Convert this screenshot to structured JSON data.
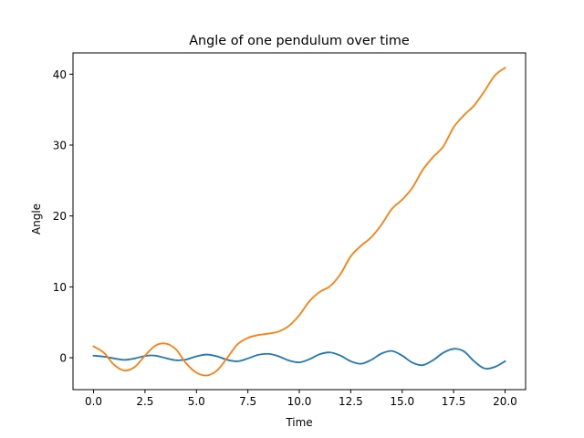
{
  "chart_data": {
    "type": "line",
    "title": "Angle of one pendulum over time",
    "xlabel": "Time",
    "ylabel": "Angle",
    "xlim": [
      -1.0,
      21.0
    ],
    "ylim": [
      -4.5,
      43.0
    ],
    "xticks": [
      0.0,
      2.5,
      5.0,
      7.5,
      10.0,
      12.5,
      15.0,
      17.5,
      20.0
    ],
    "xtick_labels": [
      "0.0",
      "2.5",
      "5.0",
      "7.5",
      "10.0",
      "12.5",
      "15.0",
      "17.5",
      "20.0"
    ],
    "yticks": [
      0,
      10,
      20,
      30,
      40
    ],
    "ytick_labels": [
      "0",
      "10",
      "20",
      "30",
      "40"
    ],
    "grid": false,
    "series": [
      {
        "color": "#1f77b4",
        "x": [
          0.0,
          0.5,
          1.0,
          1.5,
          2.0,
          2.5,
          3.0,
          3.5,
          4.0,
          4.5,
          5.0,
          5.5,
          6.0,
          6.5,
          7.0,
          7.5,
          8.0,
          8.5,
          9.0,
          9.5,
          10.0,
          10.5,
          11.0,
          11.5,
          12.0,
          12.5,
          13.0,
          13.5,
          14.0,
          14.5,
          15.0,
          15.5,
          16.0,
          16.5,
          17.0,
          17.5,
          18.0,
          18.5,
          19.0,
          19.5,
          20.0
        ],
        "values": [
          0.3,
          0.15,
          -0.1,
          -0.3,
          -0.1,
          0.25,
          0.3,
          -0.05,
          -0.35,
          -0.25,
          0.2,
          0.45,
          0.2,
          -0.3,
          -0.5,
          -0.1,
          0.4,
          0.55,
          0.2,
          -0.4,
          -0.65,
          -0.2,
          0.5,
          0.75,
          0.3,
          -0.5,
          -0.85,
          -0.3,
          0.6,
          0.95,
          0.3,
          -0.7,
          -1.05,
          -0.35,
          0.7,
          1.25,
          0.9,
          -0.5,
          -1.5,
          -1.3,
          -0.5
        ]
      },
      {
        "color": "#ff7f0e",
        "x": [
          0.0,
          0.5,
          1.0,
          1.5,
          2.0,
          2.5,
          3.0,
          3.5,
          4.0,
          4.5,
          5.0,
          5.5,
          6.0,
          6.5,
          7.0,
          7.5,
          8.0,
          8.5,
          9.0,
          9.5,
          10.0,
          10.5,
          11.0,
          11.5,
          12.0,
          12.5,
          13.0,
          13.5,
          14.0,
          14.5,
          15.0,
          15.5,
          16.0,
          16.5,
          17.0,
          17.5,
          18.0,
          18.5,
          19.0,
          19.5,
          20.0
        ],
        "values": [
          1.6,
          0.7,
          -1.0,
          -1.8,
          -1.3,
          0.3,
          1.7,
          2.0,
          1.2,
          -0.8,
          -2.1,
          -2.5,
          -1.8,
          0.0,
          1.9,
          2.8,
          3.2,
          3.4,
          3.7,
          4.5,
          6.0,
          8.0,
          9.3,
          10.1,
          11.8,
          14.3,
          15.8,
          17.0,
          18.8,
          21.0,
          22.3,
          24.0,
          26.5,
          28.3,
          29.8,
          32.5,
          34.2,
          35.6,
          37.6,
          39.8,
          40.9
        ]
      }
    ]
  }
}
